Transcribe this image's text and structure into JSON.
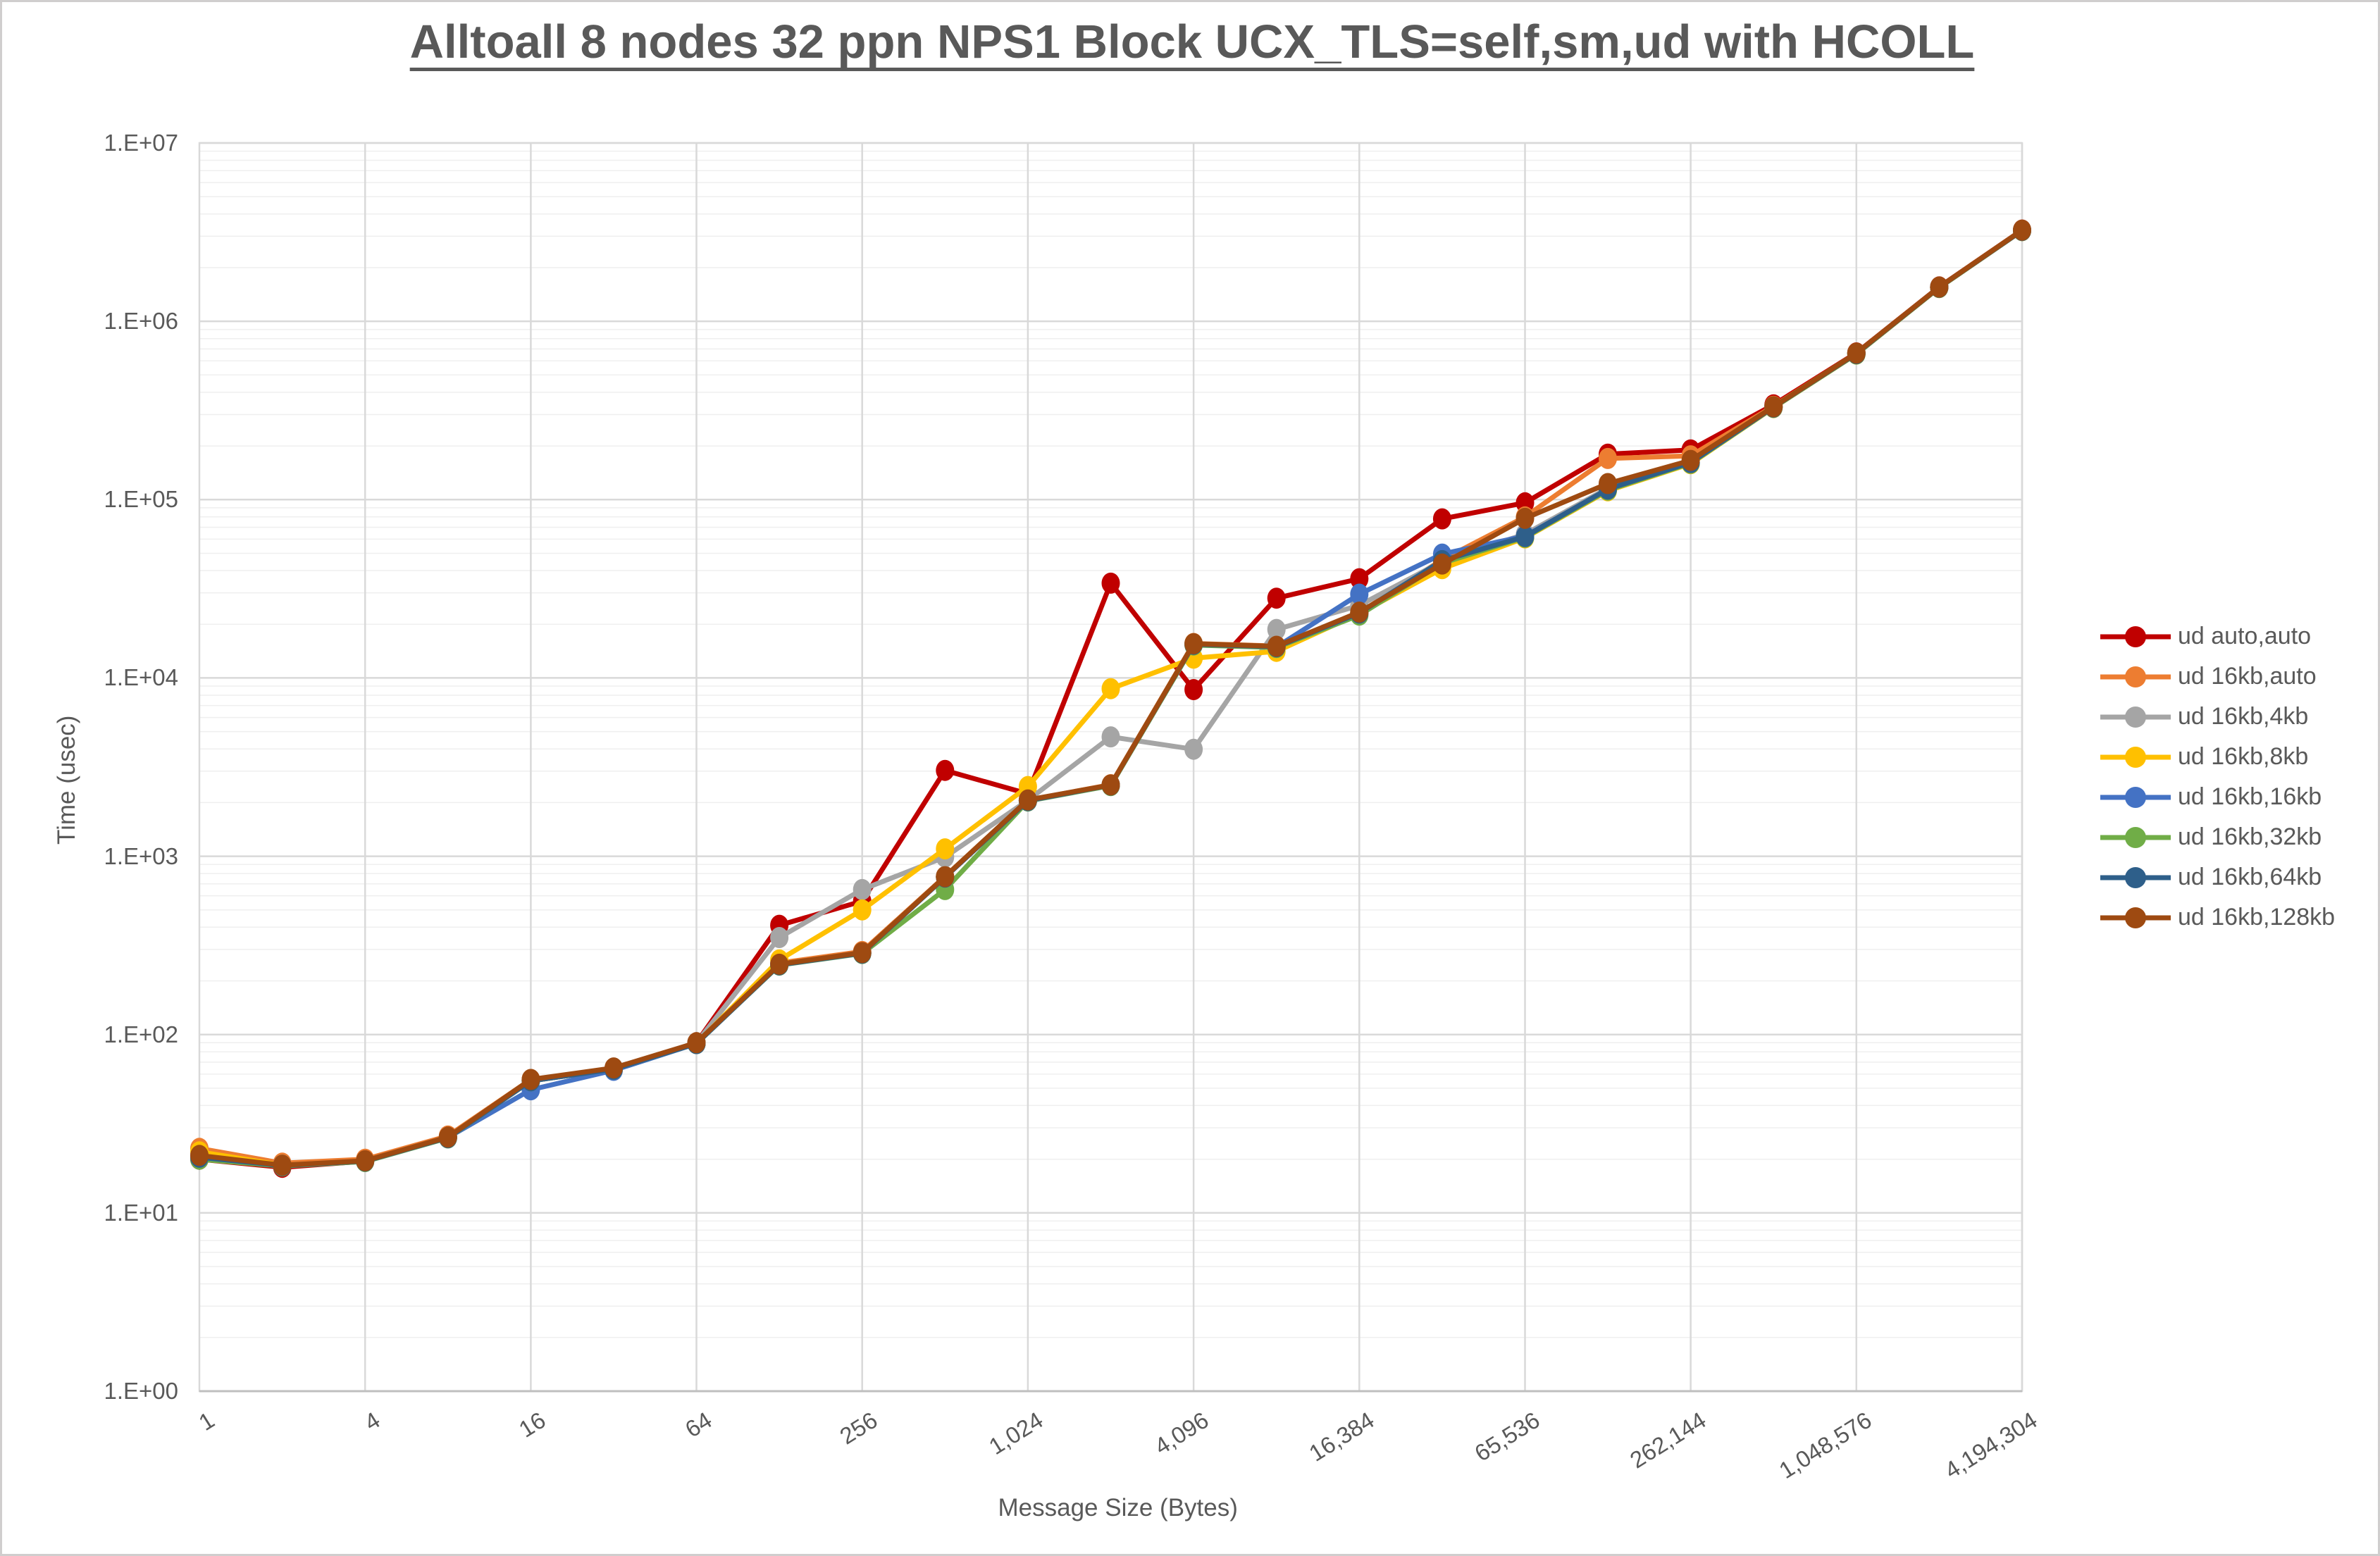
{
  "title": "Alltoall 8 nodes 32 ppn NPS1 Block UCX_TLS=self,sm,ud with HCOLL",
  "axes": {
    "x_title": "Message Size (Bytes)",
    "y_title": "Time (usec)",
    "y_tick_labels": [
      "1.E+00",
      "1.E+01",
      "1.E+02",
      "1.E+03",
      "1.E+04",
      "1.E+05",
      "1.E+06",
      "1.E+07"
    ],
    "x_tick_labels": [
      "1",
      "4",
      "16",
      "64",
      "256",
      "1,024",
      "4,096",
      "16,384",
      "65,536",
      "262,144",
      "1,048,576",
      "4,194,304"
    ]
  },
  "colors": {
    "text": "#595959",
    "major_grid": "#d9d9d9",
    "minor_grid": "#efefef",
    "axis_line": "#bfbfbf",
    "frame": "#d0cece"
  },
  "chart_data": {
    "type": "line",
    "x_scale": "log2-categories",
    "y_scale": "log10",
    "ylim": [
      1,
      10000000
    ],
    "grid": "major+minor horizontal, major vertical every 2 categories",
    "legend_position": "right",
    "title": "Alltoall 8 nodes 32 ppn NPS1 Block UCX_TLS=self,sm,ud with HCOLL",
    "xlabel": "Message Size (Bytes)",
    "ylabel": "Time (usec)",
    "categories": [
      1,
      2,
      4,
      8,
      16,
      32,
      64,
      128,
      256,
      512,
      1024,
      2048,
      4096,
      8192,
      16384,
      32768,
      65536,
      131072,
      262144,
      524288,
      1048576,
      2097152,
      4194304
    ],
    "labeled_category_step": 2,
    "series": [
      {
        "name": "ud auto,auto",
        "color": "#C00000",
        "values": [
          20,
          18,
          19.5,
          26.5,
          55,
          64,
          90,
          410,
          560,
          3030,
          2240,
          34000,
          8600,
          28000,
          36000,
          78000,
          96000,
          180000,
          190000,
          340000,
          665000,
          1560000,
          3250000
        ]
      },
      {
        "name": "ud 16kb,auto",
        "color": "#ED7D31",
        "values": [
          23,
          19,
          20,
          27,
          56,
          64,
          90,
          252,
          292,
          770,
          2060,
          2520,
          15600,
          15100,
          23200,
          46000,
          80000,
          170000,
          176000,
          334000,
          662000,
          1555000,
          3240000
        ]
      },
      {
        "name": "ud 16kb,4kb",
        "color": "#A5A5A5",
        "values": [
          21,
          18.5,
          19.5,
          26.5,
          55,
          64,
          90,
          350,
          650,
          990,
          2060,
          4670,
          3980,
          18700,
          25500,
          45000,
          64000,
          116000,
          162000,
          330000,
          658000,
          1550000,
          3230000
        ]
      },
      {
        "name": "ud 16kb,8kb",
        "color": "#FFC000",
        "values": [
          22,
          18.5,
          19.5,
          26.5,
          55,
          64,
          89,
          262,
          500,
          1100,
          2460,
          8700,
          12900,
          14100,
          23000,
          41000,
          61000,
          112000,
          159000,
          328000,
          655000,
          1545000,
          3225000
        ]
      },
      {
        "name": "ud 16kb,16kb",
        "color": "#4472C4",
        "values": [
          20.5,
          18.5,
          19.5,
          26.5,
          49,
          63,
          89,
          246,
          286,
          765,
          2050,
          2500,
          15400,
          14900,
          29500,
          49500,
          62500,
          114000,
          161000,
          331000,
          660000,
          1552000,
          3235000
        ]
      },
      {
        "name": "ud 16kb,32kb",
        "color": "#70AD47",
        "values": [
          20,
          18.3,
          19.4,
          26.3,
          55,
          64,
          89,
          245,
          285,
          650,
          2040,
          2490,
          15300,
          14800,
          22500,
          44000,
          61500,
          113000,
          160000,
          329000,
          656000,
          1548000,
          3228000
        ]
      },
      {
        "name": "ud 16kb,64kb",
        "color": "#2E5F8A",
        "values": [
          20.5,
          18.4,
          19.5,
          26.4,
          55,
          64,
          89,
          246,
          286,
          763,
          2050,
          2505,
          15450,
          14950,
          23100,
          45500,
          62000,
          114500,
          161500,
          330000,
          659000,
          1551000,
          3232000
        ]
      },
      {
        "name": "ud 16kb,128kb",
        "color": "#9E4A11",
        "values": [
          21,
          18.5,
          19.6,
          26.6,
          56,
          65,
          90,
          248,
          288,
          768,
          2070,
          2510,
          15550,
          15050,
          23400,
          43500,
          78500,
          123000,
          166000,
          332000,
          663000,
          1557000,
          3245000
        ]
      }
    ]
  }
}
